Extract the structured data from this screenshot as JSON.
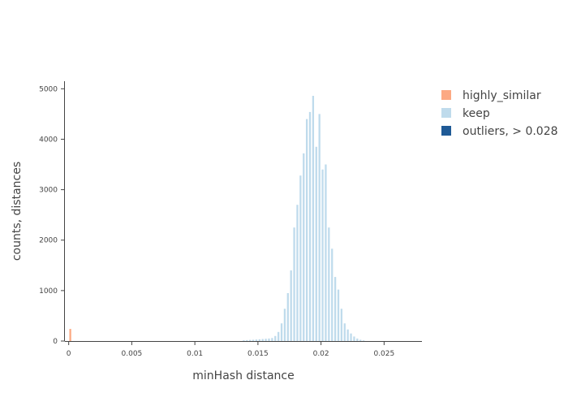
{
  "chart_data": {
    "type": "bar",
    "xlabel": "minHash distance",
    "ylabel": "counts, distances",
    "xlim": [
      -0.0003,
      0.028
    ],
    "ylim": [
      0,
      5150
    ],
    "x_ticks": [
      0,
      0.005,
      0.01,
      0.015,
      0.02,
      0.025
    ],
    "x_tick_labels": [
      "0",
      "0.005",
      "0.01",
      "0.015",
      "0.02",
      "0.025"
    ],
    "y_ticks": [
      0,
      1000,
      2000,
      3000,
      4000,
      5000
    ],
    "y_tick_labels": [
      "0",
      "1000",
      "2000",
      "3000",
      "4000",
      "5000"
    ],
    "bin_width": 0.00025,
    "legend_position": "top-right",
    "series": [
      {
        "name": "highly_similar",
        "color": "#FCA983",
        "bins": [
          {
            "x": 0.0,
            "count": 240
          }
        ]
      },
      {
        "name": "keep",
        "color": "#BFDBEC",
        "bins": [
          {
            "x": 0.01375,
            "count": 15
          },
          {
            "x": 0.014,
            "count": 18
          },
          {
            "x": 0.01425,
            "count": 22
          },
          {
            "x": 0.0145,
            "count": 25
          },
          {
            "x": 0.01475,
            "count": 30
          },
          {
            "x": 0.015,
            "count": 35
          },
          {
            "x": 0.01525,
            "count": 40
          },
          {
            "x": 0.0155,
            "count": 45
          },
          {
            "x": 0.01575,
            "count": 50
          },
          {
            "x": 0.016,
            "count": 60
          },
          {
            "x": 0.01625,
            "count": 100
          },
          {
            "x": 0.0165,
            "count": 180
          },
          {
            "x": 0.01675,
            "count": 350
          },
          {
            "x": 0.017,
            "count": 640
          },
          {
            "x": 0.01725,
            "count": 950
          },
          {
            "x": 0.0175,
            "count": 1400
          },
          {
            "x": 0.01775,
            "count": 2250
          },
          {
            "x": 0.018,
            "count": 2700
          },
          {
            "x": 0.01825,
            "count": 3280
          },
          {
            "x": 0.0185,
            "count": 3720
          },
          {
            "x": 0.01875,
            "count": 4400
          },
          {
            "x": 0.019,
            "count": 4540
          },
          {
            "x": 0.01925,
            "count": 4860
          },
          {
            "x": 0.0195,
            "count": 3850
          },
          {
            "x": 0.01975,
            "count": 4500
          },
          {
            "x": 0.02,
            "count": 3400
          },
          {
            "x": 0.02025,
            "count": 3500
          },
          {
            "x": 0.0205,
            "count": 2250
          },
          {
            "x": 0.02075,
            "count": 1830
          },
          {
            "x": 0.021,
            "count": 1270
          },
          {
            "x": 0.02125,
            "count": 1020
          },
          {
            "x": 0.0215,
            "count": 640
          },
          {
            "x": 0.02175,
            "count": 350
          },
          {
            "x": 0.022,
            "count": 230
          },
          {
            "x": 0.02225,
            "count": 150
          },
          {
            "x": 0.0225,
            "count": 90
          },
          {
            "x": 0.02275,
            "count": 50
          },
          {
            "x": 0.023,
            "count": 25
          },
          {
            "x": 0.02325,
            "count": 12
          }
        ]
      },
      {
        "name": "outliers, > 0.028",
        "color": "#1F5A96",
        "bins": []
      }
    ]
  }
}
